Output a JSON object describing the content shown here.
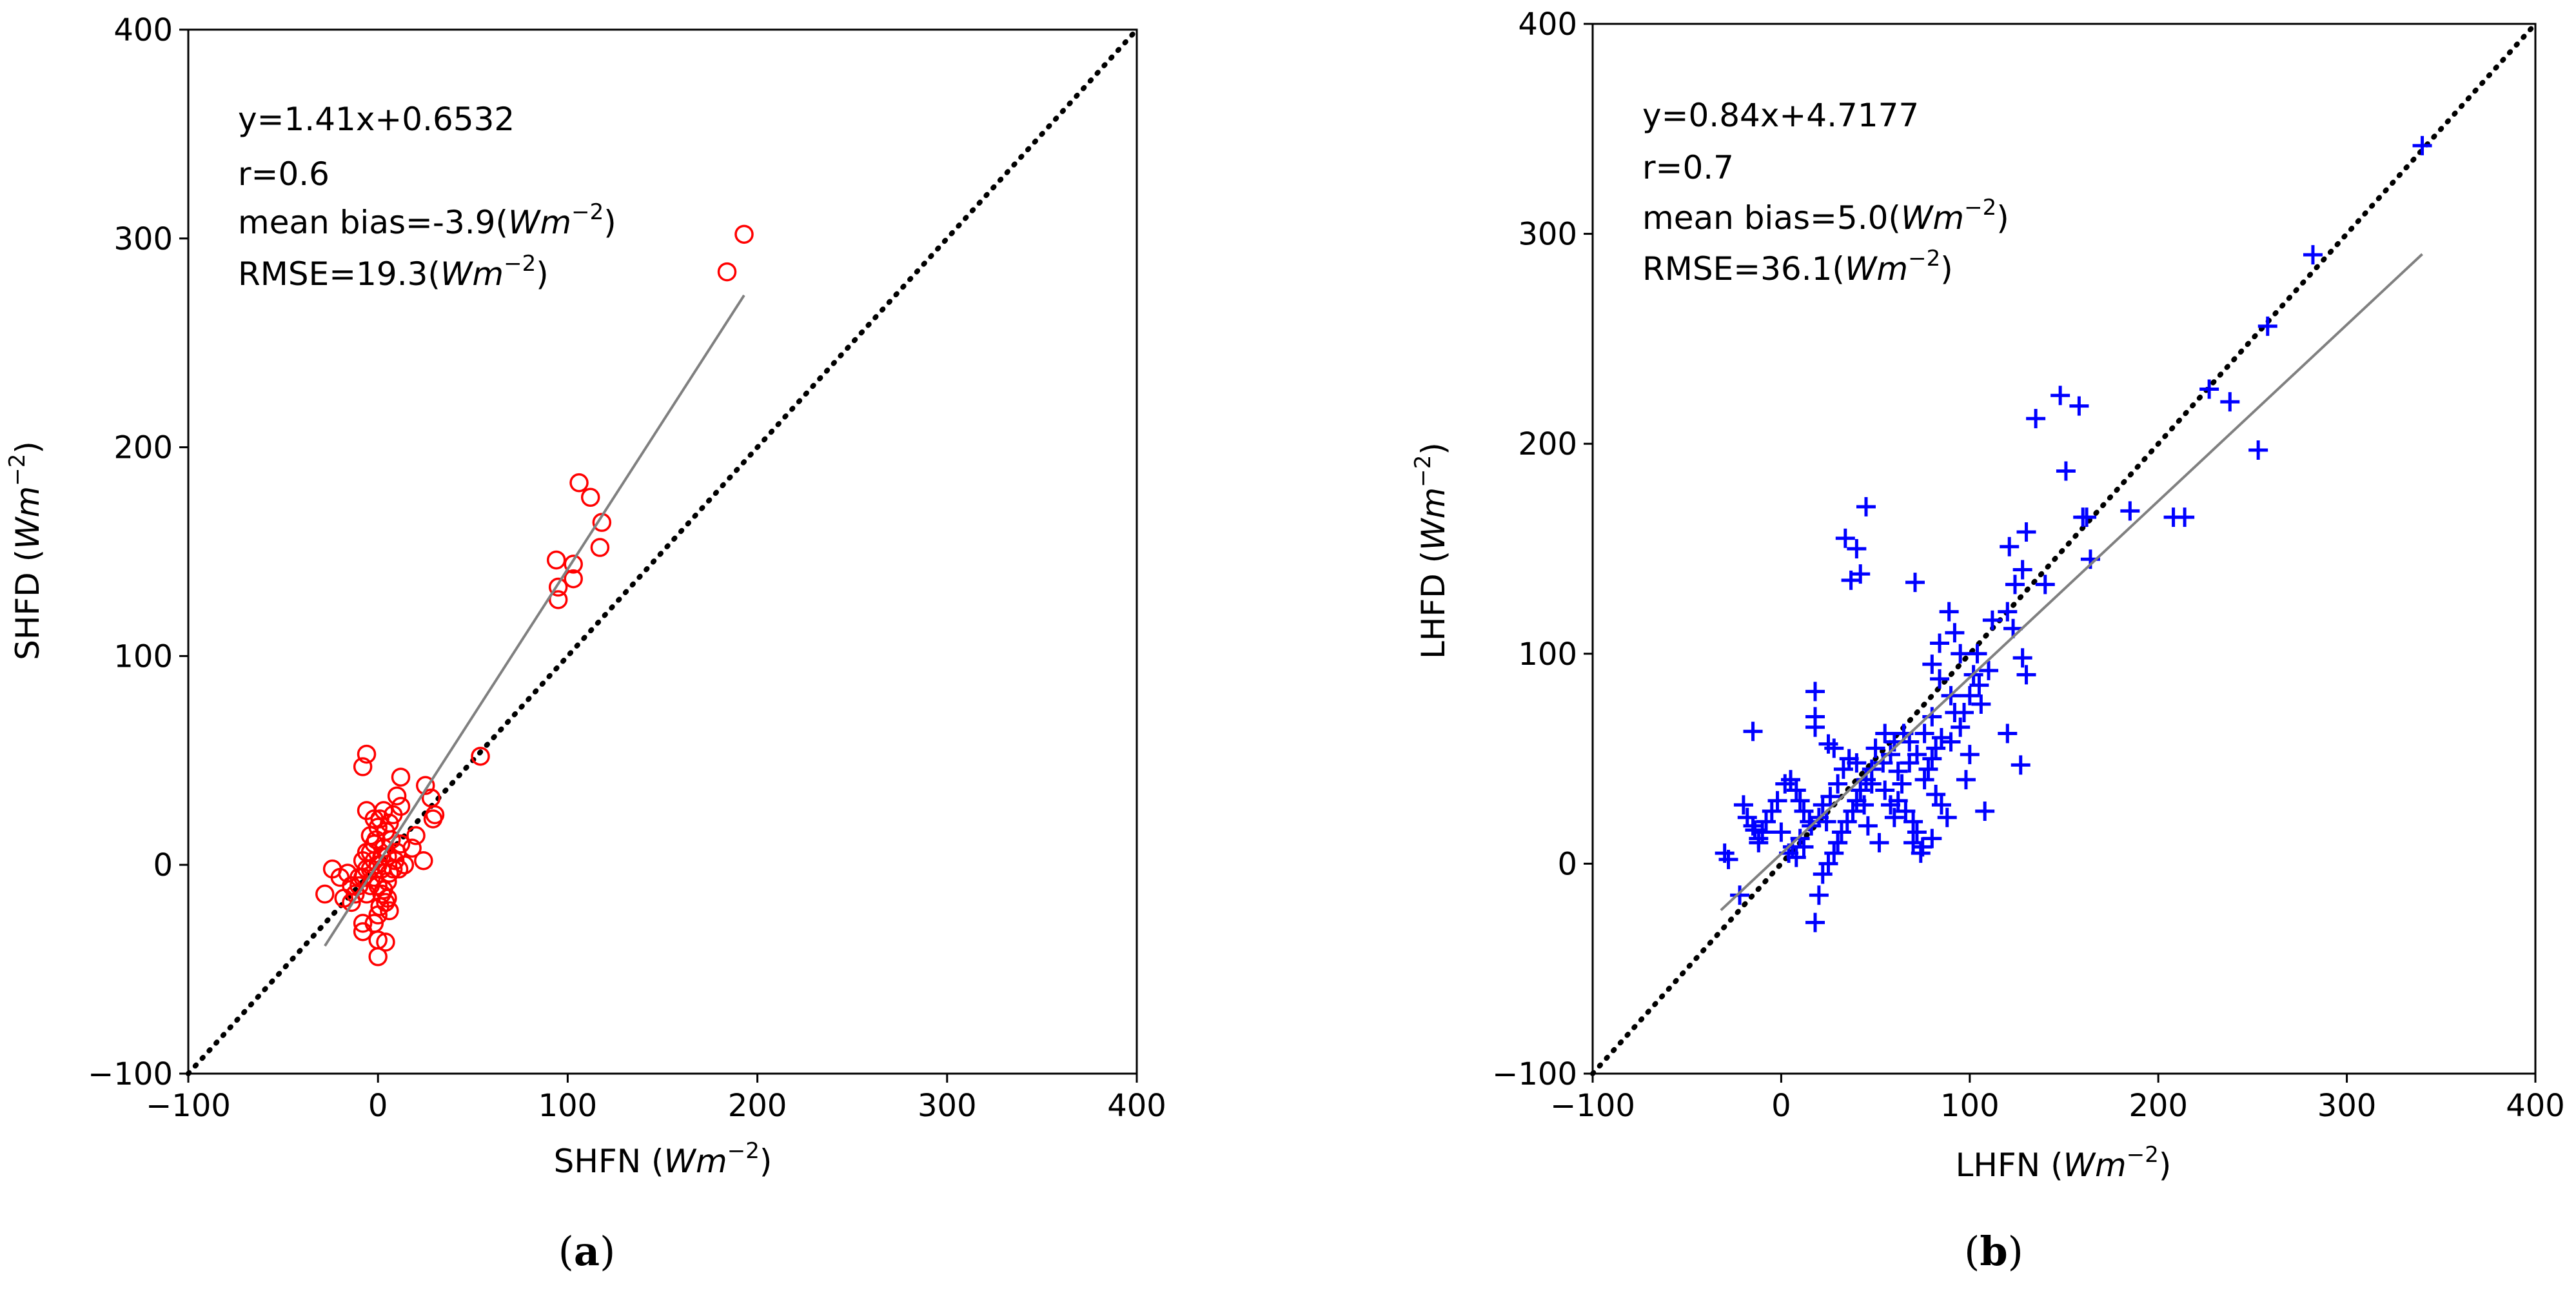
{
  "chart_data": [
    {
      "type": "scatter",
      "caption_letter": "a",
      "xlabel": "SHFN",
      "ylabel": "SHFD",
      "unit_main": "Wm",
      "unit_exp": "−2",
      "xlim": [
        -100,
        400
      ],
      "ylim": [
        -100,
        400
      ],
      "xticks": [
        -100,
        0,
        100,
        200,
        300,
        400
      ],
      "yticks": [
        -100,
        0,
        100,
        200,
        300,
        400
      ],
      "xtick_labels": [
        "−100",
        "0",
        "100",
        "200",
        "300",
        "400"
      ],
      "ytick_labels": [
        "−100",
        "0",
        "100",
        "200",
        "300",
        "400"
      ],
      "marker": "circle",
      "marker_color": "#ff0000",
      "fit_color": "#808080",
      "identity_color": "#000000",
      "fit": {
        "slope": 1.41,
        "intercept": 0.6532,
        "x_range": [
          -28,
          193
        ]
      },
      "stats": {
        "equation": "y=1.41x+0.6532",
        "r": "r=0.6",
        "bias_prefix": "mean bias=-3.9(",
        "rmse_prefix": "RMSE=19.3(",
        "suffix": ")"
      },
      "points": [
        [
          193,
          302
        ],
        [
          184,
          284
        ],
        [
          106,
          183
        ],
        [
          112,
          176
        ],
        [
          118,
          164
        ],
        [
          117,
          152
        ],
        [
          94,
          146
        ],
        [
          103,
          144
        ],
        [
          103,
          137
        ],
        [
          95,
          133
        ],
        [
          95,
          127
        ],
        [
          54,
          52
        ],
        [
          25,
          38
        ],
        [
          28,
          32
        ],
        [
          30,
          24
        ],
        [
          29,
          22
        ],
        [
          24,
          2
        ],
        [
          20,
          14
        ],
        [
          18,
          8
        ],
        [
          12,
          42
        ],
        [
          10,
          33
        ],
        [
          12,
          28
        ],
        [
          8,
          24
        ],
        [
          6,
          20
        ],
        [
          4,
          16
        ],
        [
          7,
          12
        ],
        [
          3,
          8
        ],
        [
          5,
          4
        ],
        [
          9,
          2
        ],
        [
          11,
          -2
        ],
        [
          6,
          -4
        ],
        [
          5,
          -8
        ],
        [
          3,
          -12
        ],
        [
          5,
          -16
        ],
        [
          1,
          -20
        ],
        [
          0,
          -24
        ],
        [
          -2,
          -28
        ],
        [
          -8,
          -32
        ],
        [
          -8,
          -28
        ],
        [
          0,
          -36
        ],
        [
          4,
          -37
        ],
        [
          0,
          -44
        ],
        [
          -6,
          53
        ],
        [
          -8,
          47
        ],
        [
          -6,
          26
        ],
        [
          -2,
          22
        ],
        [
          0,
          18
        ],
        [
          -4,
          14
        ],
        [
          -2,
          10
        ],
        [
          -4,
          6
        ],
        [
          -2,
          2
        ],
        [
          -6,
          -2
        ],
        [
          -8,
          -6
        ],
        [
          -10,
          -10
        ],
        [
          -12,
          -14
        ],
        [
          -14,
          -18
        ],
        [
          -16,
          -4
        ],
        [
          -20,
          -6
        ],
        [
          -24,
          -2
        ],
        [
          -28,
          -14
        ],
        [
          -18,
          -16
        ],
        [
          -14,
          -10
        ],
        [
          -10,
          -6
        ],
        [
          -8,
          2
        ],
        [
          -6,
          6
        ],
        [
          -4,
          -2
        ],
        [
          -2,
          -6
        ],
        [
          0,
          -10
        ],
        [
          2,
          -14
        ],
        [
          4,
          -18
        ],
        [
          6,
          -22
        ],
        [
          8,
          -2
        ],
        [
          10,
          6
        ],
        [
          12,
          10
        ],
        [
          14,
          0
        ],
        [
          0,
          0
        ],
        [
          2,
          4
        ],
        [
          -4,
          -10
        ],
        [
          -6,
          -14
        ],
        [
          1,
          22
        ],
        [
          3,
          26
        ],
        [
          -1,
          12
        ],
        [
          2,
          -2
        ]
      ]
    },
    {
      "type": "scatter",
      "caption_letter": "b",
      "xlabel": "LHFN",
      "ylabel": "LHFD",
      "unit_main": "Wm",
      "unit_exp": "−2",
      "xlim": [
        -100,
        400
      ],
      "ylim": [
        -100,
        400
      ],
      "xticks": [
        -100,
        0,
        100,
        200,
        300,
        400
      ],
      "yticks": [
        -100,
        0,
        100,
        200,
        300,
        400
      ],
      "xtick_labels": [
        "−100",
        "0",
        "100",
        "200",
        "300",
        "400"
      ],
      "ytick_labels": [
        "−100",
        "0",
        "100",
        "200",
        "300",
        "400"
      ],
      "marker": "plus",
      "marker_color": "#0000ff",
      "fit_color": "#808080",
      "identity_color": "#000000",
      "fit": {
        "slope": 0.84,
        "intercept": 4.7177,
        "x_range": [
          -32,
          340
        ]
      },
      "stats": {
        "equation": "y=0.84x+4.7177",
        "r": "r=0.7",
        "bias_prefix": "mean bias=5.0(",
        "rmse_prefix": "RMSE=36.1(",
        "suffix": ")"
      },
      "points": [
        [
          340,
          342
        ],
        [
          282,
          290
        ],
        [
          258,
          256
        ],
        [
          227,
          226
        ],
        [
          238,
          220
        ],
        [
          253,
          197
        ],
        [
          214,
          165
        ],
        [
          208,
          165
        ],
        [
          185,
          168
        ],
        [
          160,
          165
        ],
        [
          162,
          165
        ],
        [
          148,
          223
        ],
        [
          158,
          218
        ],
        [
          135,
          212
        ],
        [
          151,
          187
        ],
        [
          164,
          145
        ],
        [
          130,
          158
        ],
        [
          121,
          151
        ],
        [
          128,
          140
        ],
        [
          124,
          133
        ],
        [
          140,
          133
        ],
        [
          128,
          98
        ],
        [
          130,
          90
        ],
        [
          120,
          120
        ],
        [
          123,
          112
        ],
        [
          120,
          62
        ],
        [
          127,
          47
        ],
        [
          108,
          25
        ],
        [
          105,
          85
        ],
        [
          102,
          90
        ],
        [
          100,
          80
        ],
        [
          106,
          76
        ],
        [
          97,
          72
        ],
        [
          95,
          100
        ],
        [
          92,
          110
        ],
        [
          89,
          120
        ],
        [
          84,
          105
        ],
        [
          80,
          95
        ],
        [
          84,
          88
        ],
        [
          90,
          80
        ],
        [
          92,
          72
        ],
        [
          95,
          65
        ],
        [
          85,
          60
        ],
        [
          82,
          55
        ],
        [
          80,
          50
        ],
        [
          78,
          45
        ],
        [
          76,
          40
        ],
        [
          82,
          33
        ],
        [
          85,
          28
        ],
        [
          80,
          12
        ],
        [
          75,
          8
        ],
        [
          70,
          10
        ],
        [
          68,
          48
        ],
        [
          72,
          52
        ],
        [
          65,
          62
        ],
        [
          60,
          58
        ],
        [
          55,
          62
        ],
        [
          50,
          55
        ],
        [
          48,
          45
        ],
        [
          45,
          40
        ],
        [
          42,
          35
        ],
        [
          40,
          30
        ],
        [
          38,
          25
        ],
        [
          35,
          20
        ],
        [
          32,
          15
        ],
        [
          30,
          10
        ],
        [
          28,
          5
        ],
        [
          25,
          0
        ],
        [
          22,
          -5
        ],
        [
          20,
          -15
        ],
        [
          18,
          -28
        ],
        [
          15,
          20
        ],
        [
          12,
          25
        ],
        [
          10,
          30
        ],
        [
          8,
          35
        ],
        [
          5,
          40
        ],
        [
          2,
          38
        ],
        [
          -2,
          30
        ],
        [
          -5,
          25
        ],
        [
          -8,
          20
        ],
        [
          -10,
          15
        ],
        [
          -12,
          10
        ],
        [
          -15,
          18
        ],
        [
          -18,
          22
        ],
        [
          -20,
          28
        ],
        [
          -15,
          63
        ],
        [
          -12,
          12
        ],
        [
          -14,
          16
        ],
        [
          -22,
          -15
        ],
        [
          -30,
          5
        ],
        [
          -28,
          2
        ],
        [
          0,
          15
        ],
        [
          4,
          5
        ],
        [
          8,
          3
        ],
        [
          12,
          8
        ],
        [
          18,
          70
        ],
        [
          18,
          82
        ],
        [
          18,
          65
        ],
        [
          25,
          57
        ],
        [
          28,
          55
        ],
        [
          30,
          10
        ],
        [
          34,
          155
        ],
        [
          40,
          150
        ],
        [
          37,
          135
        ],
        [
          42,
          138
        ],
        [
          45,
          170
        ],
        [
          71,
          134
        ],
        [
          55,
          35
        ],
        [
          58,
          28
        ],
        [
          60,
          22
        ],
        [
          62,
          30
        ],
        [
          64,
          38
        ],
        [
          66,
          25
        ],
        [
          70,
          20
        ],
        [
          72,
          15
        ],
        [
          74,
          5
        ],
        [
          52,
          10
        ],
        [
          46,
          18
        ],
        [
          44,
          28
        ],
        [
          40,
          48
        ],
        [
          36,
          50
        ],
        [
          33,
          45
        ],
        [
          30,
          38
        ],
        [
          26,
          32
        ],
        [
          22,
          28
        ],
        [
          20,
          22
        ],
        [
          16,
          18
        ],
        [
          10,
          12
        ],
        [
          6,
          8
        ],
        [
          24,
          20
        ],
        [
          48,
          38
        ],
        [
          54,
          48
        ],
        [
          58,
          52
        ],
        [
          62,
          44
        ],
        [
          68,
          58
        ],
        [
          76,
          62
        ],
        [
          80,
          70
        ],
        [
          110,
          92
        ],
        [
          88,
          22
        ],
        [
          100,
          52
        ],
        [
          98,
          40
        ],
        [
          90,
          58
        ],
        [
          104,
          100
        ],
        [
          112,
          116
        ]
      ]
    }
  ]
}
